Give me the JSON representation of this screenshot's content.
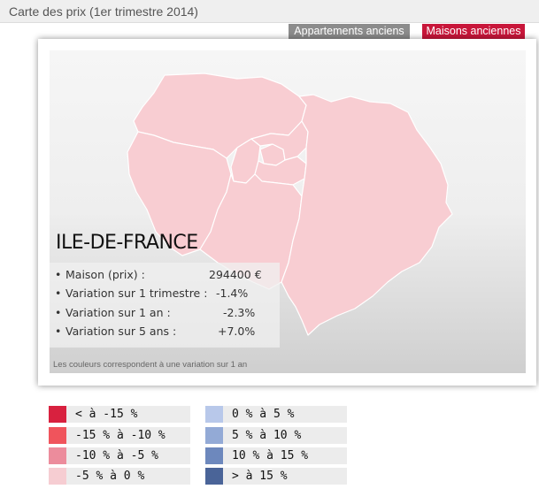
{
  "header": {
    "title": "Carte des prix (1er trimestre 2014)"
  },
  "tabs": [
    {
      "label": "Appartements anciens",
      "active": false
    },
    {
      "label": "Maisons anciennes",
      "active": true
    }
  ],
  "map": {
    "region": "ILE-DE-FRANCE",
    "fill_color": "#f8cdd2",
    "border_color": "#ffffff",
    "info": [
      {
        "label": "Maison (prix) :",
        "value": "294400 €"
      },
      {
        "label": "Variation sur 1 trimestre :",
        "value": "-1.4%"
      },
      {
        "label": "Variation sur 1 an :",
        "value": "-2.3%"
      },
      {
        "label": "Variation sur 5 ans :",
        "value": "+7.0%"
      }
    ],
    "note": "Les couleurs correspondent à une variation sur 1 an"
  },
  "legend": [
    {
      "label": "< à -15 %",
      "color": "#d8213f"
    },
    {
      "label": "-15 % à -10  %",
      "color": "#f0545c"
    },
    {
      "label": "-10 % à -5 %",
      "color": "#ec8c9c"
    },
    {
      "label": "-5 % à 0 %",
      "color": "#f6cdd2"
    },
    {
      "label": "0 % à 5 %",
      "color": "#b8c8ea"
    },
    {
      "label": "5 % à 10 %",
      "color": "#93aad6"
    },
    {
      "label": "10 % à 15 %",
      "color": "#6d88bd"
    },
    {
      "label": "> à 15 %",
      "color": "#4a6498"
    }
  ]
}
